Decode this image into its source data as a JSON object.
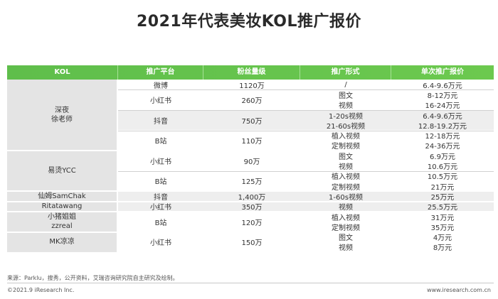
{
  "title": "2021年代表美妆KOL推广报价",
  "headers": [
    "KOL",
    "推广平台",
    "粉丝量级",
    "推广形式",
    "单次推广报价"
  ],
  "rows": [
    {
      "kol": "深夜\n徐老师",
      "platform": "微博",
      "fans": "1120万",
      "form": "/",
      "price": "6.4-9.6万元"
    },
    {
      "platform": "小红书",
      "fans": "260万",
      "form": "图文",
      "price": "8-12万元"
    },
    {
      "form": "视频",
      "price": "16-24万元"
    },
    {
      "platform": "抖音",
      "fans": "750万",
      "form": "1-20s视频",
      "price": "6.4-9.6万元"
    },
    {
      "form": "21-60s视频",
      "price": "12.8-19.2万元"
    },
    {
      "platform": "B站",
      "fans": "110万",
      "form": "植入视频",
      "price": "12-18万元"
    },
    {
      "form": "定制视频",
      "price": "24-36万元"
    },
    {
      "kol": "易烫YCC",
      "platform": "小红书",
      "fans": "90万",
      "form": "图文",
      "price": "6.9万元"
    },
    {
      "form": "视频",
      "price": "10.6万元"
    },
    {
      "platform": "B站",
      "fans": "125万",
      "form": "植入视频",
      "price": "10.5万元"
    },
    {
      "form": "定制视频",
      "price": "21万元"
    },
    {
      "kol": "仙姆SamChak",
      "platform": "抖音",
      "fans": "1,400万",
      "form": "1-60s视频",
      "price": "25万元"
    },
    {
      "kol": "Ritatawang",
      "platform": "小红书",
      "fans": "350万",
      "form": "视频",
      "price": "25.5万元"
    },
    {
      "kol": "小猪姐姐\nzzreal",
      "platform": "B站",
      "fans": "120万",
      "form": "植入视频",
      "price": "31万元"
    },
    {
      "form": "定制视频",
      "price": "35万元"
    },
    {
      "kol": "MK凉凉",
      "platform": "小红书",
      "fans": "150万",
      "form": "图文",
      "price": "4万元"
    },
    {
      "form": "视频",
      "price": "8万元"
    }
  ],
  "source": "来源：Parklu，搜秀，公开资料，艾瑞咨询研究院自主研究及绘制。",
  "copyright": "©2021.9 iResearch Inc.",
  "website": "www.iresearch.com.cn",
  "colors": {
    "header_green": "#63c24d",
    "kol_bg": "#e4e4e4",
    "stripe_bg": "#eeeeee"
  }
}
